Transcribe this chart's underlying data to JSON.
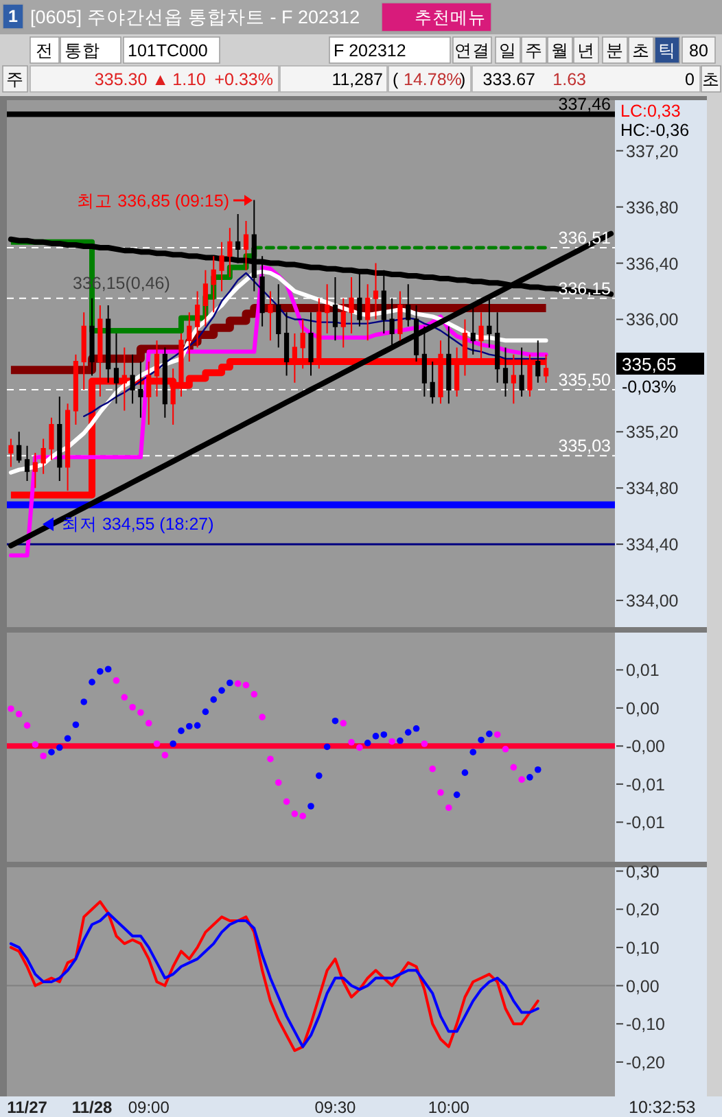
{
  "chart_data": [
    {
      "type": "other",
      "title": "[0605] 주야간선옵 통합차트 - F 202312",
      "annotations": [
        "1",
        "추천메뉴",
        "전",
        "통합",
        "101TC000",
        "F 202312",
        "연결",
        "일",
        "주",
        "월",
        "년",
        "분",
        "초",
        "틱",
        "80",
        "주",
        "335.30 ▲",
        "1.10",
        "+0.33%",
        "11,287",
        "(",
        "14.78%",
        ")",
        "333.67",
        "1.63",
        "0",
        "초"
      ]
    },
    {
      "type": "candlestick",
      "categories": [
        null,
        null,
        null,
        null,
        null,
        null,
        null,
        null,
        null,
        null,
        null,
        null,
        null,
        null,
        null,
        null,
        null,
        null,
        null,
        null,
        null,
        null,
        null,
        null,
        null,
        null,
        null,
        null,
        null,
        null,
        null,
        null,
        null,
        null,
        null,
        null,
        null,
        null,
        null,
        null,
        null,
        null,
        null,
        null,
        null,
        null,
        null,
        null,
        null,
        null,
        null,
        null,
        null,
        null,
        null,
        null,
        null,
        null,
        null,
        null,
        null,
        null,
        null,
        null,
        null,
        null,
        null,
        null,
        null,
        null,
        null,
        null,
        null,
        null,
        null
      ],
      "ohlc": [
        [
          335.05,
          335.15,
          334.95,
          335.1
        ],
        [
          335.1,
          335.2,
          334.98,
          335.0
        ],
        [
          335.0,
          335.1,
          334.85,
          334.92
        ],
        [
          334.92,
          335.05,
          334.8,
          334.98
        ],
        [
          334.98,
          335.15,
          334.9,
          335.08
        ],
        [
          335.08,
          335.3,
          335.0,
          335.25
        ],
        [
          335.25,
          335.45,
          334.85,
          334.95
        ],
        [
          334.95,
          335.4,
          334.78,
          335.35
        ],
        [
          335.35,
          335.75,
          335.25,
          335.7
        ],
        [
          335.7,
          336.05,
          335.5,
          335.95
        ],
        [
          335.95,
          336.15,
          335.6,
          335.7
        ],
        [
          335.7,
          336.1,
          335.45,
          336.0
        ],
        [
          336.0,
          336.1,
          335.55,
          335.65
        ],
        [
          335.65,
          335.9,
          335.4,
          335.55
        ],
        [
          335.55,
          335.8,
          335.35,
          335.6
        ],
        [
          335.6,
          335.75,
          335.4,
          335.5
        ],
        [
          335.5,
          335.7,
          335.3,
          335.45
        ],
        [
          335.45,
          335.7,
          335.25,
          335.6
        ],
        [
          335.6,
          335.85,
          335.45,
          335.75
        ],
        [
          335.75,
          335.8,
          335.3,
          335.4
        ],
        [
          335.4,
          335.65,
          335.25,
          335.55
        ],
        [
          335.55,
          335.9,
          335.45,
          335.85
        ],
        [
          335.85,
          336.05,
          335.7,
          335.95
        ],
        [
          335.95,
          336.2,
          335.8,
          336.1
        ],
        [
          336.1,
          336.35,
          335.95,
          336.25
        ],
        [
          336.25,
          336.45,
          336.05,
          336.35
        ],
        [
          336.35,
          336.55,
          336.2,
          336.45
        ],
        [
          336.45,
          336.65,
          336.3,
          336.55
        ],
        [
          336.55,
          336.75,
          336.4,
          336.5
        ],
        [
          336.5,
          336.7,
          336.35,
          336.6
        ],
        [
          336.6,
          336.85,
          336.2,
          336.3
        ],
        [
          336.3,
          336.45,
          335.95,
          336.05
        ],
        [
          336.05,
          336.2,
          335.85,
          336.1
        ],
        [
          336.1,
          336.25,
          335.8,
          335.9
        ],
        [
          335.9,
          336.05,
          335.6,
          335.7
        ],
        [
          335.7,
          335.9,
          335.55,
          335.8
        ],
        [
          335.8,
          336.0,
          335.65,
          335.9
        ],
        [
          335.9,
          336.05,
          335.6,
          335.7
        ],
        [
          335.7,
          336.15,
          335.65,
          336.05
        ],
        [
          336.05,
          336.25,
          335.9,
          336.1
        ],
        [
          336.1,
          336.3,
          335.85,
          335.95
        ],
        [
          335.95,
          336.15,
          335.8,
          336.05
        ],
        [
          336.05,
          336.3,
          335.9,
          336.15
        ],
        [
          336.15,
          336.35,
          335.95,
          336.0
        ],
        [
          336.0,
          336.25,
          335.85,
          336.15
        ],
        [
          336.15,
          336.4,
          336.0,
          336.2
        ],
        [
          336.2,
          336.35,
          335.9,
          336.0
        ],
        [
          336.0,
          336.15,
          335.8,
          335.9
        ],
        [
          335.9,
          336.2,
          335.85,
          336.1
        ],
        [
          336.1,
          336.25,
          335.95,
          336.0
        ],
        [
          336.0,
          336.1,
          335.7,
          335.75
        ],
        [
          335.75,
          335.95,
          335.45,
          335.55
        ],
        [
          335.55,
          335.7,
          335.4,
          335.45
        ],
        [
          335.45,
          335.85,
          335.4,
          335.75
        ],
        [
          335.75,
          335.95,
          335.4,
          335.5
        ],
        [
          335.5,
          335.8,
          335.45,
          335.7
        ],
        [
          335.7,
          336.0,
          335.6,
          335.9
        ],
        [
          335.9,
          336.1,
          335.75,
          335.85
        ],
        [
          335.85,
          336.05,
          335.7,
          335.95
        ],
        [
          335.95,
          336.15,
          335.8,
          335.9
        ],
        [
          335.9,
          336.05,
          335.55,
          335.65
        ],
        [
          335.65,
          335.8,
          335.45,
          335.55
        ],
        [
          335.55,
          335.75,
          335.4,
          335.6
        ],
        [
          335.6,
          335.8,
          335.45,
          335.5
        ],
        [
          335.5,
          335.75,
          335.45,
          335.7
        ],
        [
          335.7,
          335.85,
          335.55,
          335.6
        ],
        [
          335.6,
          335.75,
          335.55,
          335.65
        ],
        null,
        null,
        null,
        null,
        null,
        null,
        null,
        null
      ],
      "series": [
        {
          "type": "step",
          "color": "#800000",
          "values": [
            335.64,
            335.64,
            335.64,
            335.64,
            335.64,
            335.64,
            335.64,
            335.64,
            335.64,
            335.64,
            335.72,
            335.72,
            335.72,
            335.72,
            335.72,
            335.72,
            335.79,
            335.79,
            335.79,
            335.79,
            335.79,
            335.79,
            335.84,
            335.89,
            335.89,
            335.94,
            335.94,
            335.99,
            335.99,
            336.04,
            336.08,
            336.08,
            336.08,
            336.08,
            336.08,
            336.08,
            336.08,
            336.08,
            336.08,
            336.08,
            336.08,
            336.08,
            336.08,
            336.08,
            336.08,
            336.08,
            336.08,
            336.08,
            336.08,
            336.08,
            336.08,
            336.08,
            336.08,
            336.08,
            336.08,
            336.08,
            336.08,
            336.08,
            336.08,
            336.08,
            336.08,
            336.08,
            336.08,
            336.08,
            336.08,
            336.08,
            336.08,
            null,
            null,
            null,
            null,
            null,
            null,
            null,
            null
          ]
        },
        {
          "type": "step",
          "color": "#ff0000",
          "values": [
            334.75,
            334.75,
            334.75,
            334.75,
            334.75,
            334.75,
            334.75,
            334.75,
            334.75,
            334.75,
            335.56,
            335.56,
            335.56,
            335.56,
            335.56,
            335.56,
            335.56,
            335.56,
            335.56,
            335.56,
            335.53,
            335.53,
            335.58,
            335.58,
            335.62,
            335.62,
            335.66,
            335.7,
            335.7,
            335.7,
            335.7,
            335.7,
            335.7,
            335.7,
            335.7,
            335.7,
            335.7,
            335.7,
            335.7,
            335.7,
            335.7,
            335.7,
            335.7,
            335.7,
            335.7,
            335.7,
            335.7,
            335.7,
            335.7,
            335.7,
            335.7,
            335.7,
            335.7,
            335.7,
            335.7,
            335.7,
            335.7,
            335.7,
            335.7,
            335.7,
            335.7,
            335.7,
            335.7,
            335.7,
            335.7,
            335.7,
            335.7,
            null,
            null,
            null,
            null,
            null,
            null,
            null,
            null
          ]
        },
        {
          "type": "step",
          "color": "#008000",
          "values": [
            336.55,
            336.55,
            336.55,
            336.55,
            336.55,
            336.55,
            336.55,
            336.55,
            336.55,
            336.55,
            335.92,
            335.92,
            335.92,
            335.92,
            335.92,
            335.92,
            335.92,
            335.92,
            335.92,
            335.92,
            335.92,
            336.01,
            336.01,
            336.01,
            336.16,
            336.3,
            336.3,
            336.37,
            336.37,
            336.45,
            336.51,
            null,
            null,
            null,
            null,
            null,
            null,
            null,
            null,
            null,
            null,
            null,
            null,
            null,
            null,
            null,
            null,
            null,
            null,
            null,
            null,
            null,
            null,
            null,
            null,
            null,
            null,
            null,
            null,
            null,
            null,
            null,
            null,
            null,
            null,
            null,
            null,
            null,
            null,
            null,
            null,
            null,
            null,
            null,
            null
          ]
        },
        {
          "type": "line",
          "color": "#008000",
          "line_style": "dashed",
          "values": [
            null,
            null,
            null,
            null,
            null,
            null,
            null,
            null,
            null,
            null,
            null,
            null,
            null,
            null,
            null,
            null,
            null,
            null,
            null,
            null,
            null,
            null,
            null,
            null,
            null,
            null,
            null,
            null,
            null,
            null,
            336.51,
            336.51,
            336.51,
            336.51,
            336.51,
            336.51,
            336.51,
            336.51,
            336.51,
            336.51,
            336.51,
            336.51,
            336.51,
            336.51,
            336.51,
            336.51,
            336.51,
            336.51,
            336.51,
            336.51,
            336.51,
            336.51,
            336.51,
            336.51,
            336.51,
            336.51,
            336.51,
            336.51,
            336.51,
            336.51,
            336.51,
            336.51,
            336.51,
            336.51,
            336.51,
            336.51,
            336.51,
            null,
            null,
            null,
            null,
            null,
            null,
            null,
            null
          ]
        },
        {
          "type": "line",
          "color": "#ff00ff",
          "values": [
            334.32,
            334.32,
            334.32,
            335.02,
            335.02,
            335.02,
            335.02,
            335.02,
            335.02,
            335.02,
            335.02,
            335.02,
            335.02,
            335.02,
            335.02,
            335.02,
            335.02,
            335.77,
            335.77,
            335.77,
            335.77,
            335.77,
            335.77,
            335.77,
            335.77,
            335.77,
            335.77,
            335.77,
            335.77,
            335.77,
            335.77,
            336.37,
            336.36,
            336.31,
            336.25,
            336.1,
            335.94,
            335.9,
            335.87,
            335.87,
            335.87,
            335.87,
            335.87,
            335.87,
            335.87,
            335.89,
            335.9,
            335.91,
            335.92,
            335.93,
            335.94,
            335.95,
            335.98,
            336.02,
            335.93,
            335.88,
            335.86,
            335.84,
            335.82,
            335.81,
            335.8,
            335.78,
            335.77,
            335.76,
            335.75,
            335.75,
            335.75,
            null,
            null,
            null,
            null,
            null,
            null,
            null,
            null
          ]
        },
        {
          "type": "line",
          "color": "#ffffff",
          "values": [
            334.91,
            334.93,
            334.94,
            334.95,
            334.97,
            335.02,
            335.06,
            335.09,
            335.14,
            335.19,
            335.26,
            335.34,
            335.41,
            335.48,
            335.53,
            335.56,
            335.6,
            335.63,
            335.66,
            335.68,
            335.7,
            335.72,
            335.85,
            335.94,
            335.99,
            336.05,
            336.1,
            336.17,
            336.23,
            336.28,
            336.33,
            336.34,
            336.33,
            336.3,
            336.25,
            336.2,
            336.18,
            336.16,
            336.14,
            336.12,
            336.1,
            336.08,
            336.06,
            336.04,
            336.03,
            336.04,
            336.05,
            336.06,
            336.07,
            336.06,
            336.04,
            336.03,
            336.02,
            336.0,
            335.97,
            335.94,
            335.91,
            335.88,
            335.87,
            335.87,
            335.86,
            335.85,
            335.85,
            335.85,
            335.85,
            335.85,
            335.85,
            null,
            null,
            null,
            null,
            null,
            null,
            null,
            null
          ]
        },
        {
          "type": "line",
          "color": "#000080",
          "values": [
            null,
            null,
            null,
            null,
            null,
            null,
            null,
            null,
            null,
            335.31,
            335.34,
            335.38,
            335.41,
            335.45,
            335.48,
            335.52,
            335.56,
            335.6,
            335.64,
            335.69,
            335.73,
            335.77,
            335.81,
            335.86,
            335.94,
            336.02,
            336.13,
            336.2,
            336.28,
            336.33,
            336.27,
            336.21,
            336.15,
            336.09,
            336.02,
            336.0,
            336.0,
            335.99,
            335.98,
            335.98,
            335.98,
            335.97,
            335.97,
            335.97,
            335.97,
            335.98,
            335.99,
            335.99,
            336.0,
            336.01,
            336.0,
            335.97,
            335.95,
            335.92,
            335.88,
            335.84,
            335.8,
            335.78,
            335.77,
            335.75,
            335.74,
            335.72,
            335.72,
            335.72,
            335.72,
            335.72,
            335.72,
            null,
            null,
            null,
            null,
            null,
            null,
            null,
            null
          ]
        },
        {
          "type": "line",
          "color": "#000000",
          "values": [
            336.57,
            336.56,
            336.56,
            336.55,
            336.55,
            336.54,
            336.54,
            336.53,
            336.53,
            336.52,
            336.52,
            336.51,
            336.51,
            336.5,
            336.49,
            336.49,
            336.48,
            336.48,
            336.47,
            336.47,
            336.46,
            336.46,
            336.45,
            336.45,
            336.44,
            336.44,
            336.43,
            336.43,
            336.42,
            336.42,
            336.41,
            336.41,
            336.4,
            336.4,
            336.39,
            336.39,
            336.38,
            336.37,
            336.37,
            336.36,
            336.36,
            336.35,
            336.35,
            336.34,
            336.34,
            336.33,
            336.33,
            336.32,
            336.32,
            336.31,
            336.31,
            336.3,
            336.3,
            336.29,
            336.29,
            336.28,
            336.28,
            336.27,
            336.27,
            336.26,
            336.26,
            336.25,
            336.24,
            336.24,
            336.23,
            336.23,
            336.22,
            336.22,
            336.21,
            336.21,
            336.2,
            336.2,
            336.19,
            336.19,
            336.18
          ]
        },
        {
          "type": "line",
          "color": "#000000",
          "values": [
            334.39,
            334.42,
            334.45,
            334.48,
            334.51,
            334.54,
            334.57,
            334.6,
            334.63,
            334.66,
            334.69,
            334.72,
            334.75,
            334.78,
            334.81,
            334.84,
            334.87,
            334.9,
            334.93,
            334.96,
            334.99,
            335.02,
            335.05,
            335.08,
            335.11,
            335.14,
            335.17,
            335.2,
            335.23,
            335.26,
            335.29,
            335.32,
            335.35,
            335.38,
            335.41,
            335.44,
            335.47,
            335.5,
            335.53,
            335.56,
            335.59,
            335.62,
            335.65,
            335.68,
            335.71,
            335.74,
            335.77,
            335.8,
            335.83,
            335.86,
            335.89,
            335.92,
            335.95,
            335.98,
            336.01,
            336.04,
            336.07,
            336.1,
            336.13,
            336.16,
            336.19,
            336.22,
            336.25,
            336.28,
            336.31,
            336.34,
            336.37,
            336.4,
            336.43,
            336.46,
            336.49,
            336.52,
            336.55,
            336.58,
            336.61
          ]
        }
      ],
      "ylim": [
        333.81,
        337.56
      ],
      "yticks": [
        {
          "value": 337.2,
          "label": "337,20"
        },
        {
          "value": 336.8,
          "label": "336,80"
        },
        {
          "value": 336.4,
          "label": "336,40"
        },
        {
          "value": 336.0,
          "label": "336,00"
        },
        {
          "value": 335.2,
          "label": "335,20"
        },
        {
          "value": 334.8,
          "label": "334,80"
        },
        {
          "value": 334.4,
          "label": "334,40"
        },
        {
          "value": 334.0,
          "label": "334,00"
        }
      ],
      "ref_lines": [
        {
          "axis": "y",
          "value": 337.46,
          "label": "337,46",
          "color": "#000000"
        },
        {
          "axis": "y",
          "value": 336.51,
          "label": "336,51",
          "color": "#ffffff",
          "line_style": "dashed"
        },
        {
          "axis": "y",
          "value": 336.15,
          "label": "336,15",
          "color": "#ffffff",
          "line_style": "dashed"
        },
        {
          "axis": "y",
          "value": 335.5,
          "label": "335,50",
          "color": "#ffffff",
          "line_style": "dashed"
        },
        {
          "axis": "y",
          "value": 335.03,
          "label": "335,03",
          "color": "#ffffff",
          "line_style": "dashed"
        },
        {
          "axis": "y",
          "value": 334.68,
          "color": "#0000ff"
        },
        {
          "axis": "y",
          "value": 334.4,
          "color": "#000080"
        }
      ],
      "annotations": [
        "최고 336,85 (09:15)",
        {
          "text": "336,15(0,46)",
          "y": 336.15
        },
        "최저 334,55 (18:27)",
        "335,65",
        "-0,03%",
        "LC:0,33",
        "HC:-0,36"
      ],
      "tick_labels": "y"
    },
    {
      "type": "scatter",
      "marker": "circle",
      "categories": [
        null,
        null,
        null,
        null,
        null,
        null,
        null,
        null,
        null,
        null,
        null,
        null,
        null,
        null,
        null,
        null,
        null,
        null,
        null,
        null,
        null,
        null,
        null,
        null,
        null,
        null,
        null,
        null,
        null,
        null,
        null,
        null,
        null,
        null,
        null,
        null,
        null,
        null,
        null,
        null,
        null,
        null,
        null,
        null,
        null,
        null,
        null,
        null,
        null,
        null,
        null,
        null,
        null,
        null,
        null,
        null,
        null,
        null,
        null,
        null,
        null,
        null,
        null,
        null,
        null,
        null,
        null,
        null,
        null,
        null,
        null,
        null,
        null,
        null,
        null
      ],
      "values": [
        0.0024,
        0.0017,
        0.0002,
        -0.0023,
        -0.0038,
        -0.0033,
        -0.0027,
        -0.0015,
        0.0003,
        0.0033,
        0.0059,
        0.0073,
        0.0076,
        0.0061,
        0.0039,
        0.0026,
        0.0019,
        0.0005,
        -0.0022,
        -0.0037,
        -0.0022,
        -0.0005,
        0.0001,
        0.0002,
        0.002,
        0.0036,
        0.0048,
        0.0058,
        0.0057,
        0.0055,
        0.0043,
        0.0013,
        -0.0042,
        -0.0073,
        -0.0098,
        -0.0114,
        -0.0117,
        -0.0104,
        -0.0064,
        -0.0026,
        0.0008,
        0.0005,
        -0.002,
        -0.0027,
        -0.0021,
        -0.0012,
        -0.001,
        -0.0019,
        -0.0018,
        -0.0007,
        -0.0002,
        -0.0022,
        -0.0055,
        -0.0086,
        -0.0106,
        -0.0089,
        -0.006,
        -0.0033,
        -0.0017,
        -0.0009,
        -0.001,
        -0.0029,
        -0.0053,
        -0.0069,
        -0.0066,
        -0.0056,
        null,
        null,
        null,
        null,
        null,
        null,
        null,
        null,
        null
      ],
      "colors": [
        "#ff00ff",
        "#ff00ff",
        "#ff00ff",
        "#ff00ff",
        "#ff00ff",
        "#0000ff",
        "#0000ff",
        "#0000ff",
        "#0000ff",
        "#0000ff",
        "#0000ff",
        "#0000ff",
        "#0000ff",
        "#ff00ff",
        "#ff00ff",
        "#ff00ff",
        "#ff00ff",
        "#ff00ff",
        "#ff00ff",
        "#ff00ff",
        "#0000ff",
        "#0000ff",
        "#0000ff",
        "#0000ff",
        "#0000ff",
        "#0000ff",
        "#0000ff",
        "#0000ff",
        "#ff00ff",
        "#ff00ff",
        "#ff00ff",
        "#ff00ff",
        "#ff00ff",
        "#ff00ff",
        "#ff00ff",
        "#ff00ff",
        "#ff00ff",
        "#0000ff",
        "#0000ff",
        "#0000ff",
        "#0000ff",
        "#ff00ff",
        "#ff00ff",
        "#ff00ff",
        "#0000ff",
        "#0000ff",
        "#0000ff",
        "#ff00ff",
        "#0000ff",
        "#0000ff",
        "#0000ff",
        "#ff00ff",
        "#ff00ff",
        "#ff00ff",
        "#ff00ff",
        "#0000ff",
        "#0000ff",
        "#0000ff",
        "#0000ff",
        "#0000ff",
        "#ff00ff",
        "#ff00ff",
        "#ff00ff",
        "#ff00ff",
        "#0000ff",
        "#0000ff",
        null,
        null,
        null,
        null,
        null,
        null,
        null,
        null,
        null
      ],
      "ylim": [
        -0.0177,
        0.0124
      ],
      "yticks": [
        {
          "value": 0.0075,
          "label": "0,01"
        },
        {
          "value": 0.0025,
          "label": "0,00"
        },
        {
          "value": -0.0025,
          "label": "-0,00"
        },
        {
          "value": -0.0075,
          "label": "-0,01"
        },
        {
          "value": -0.0125,
          "label": "-0,01"
        }
      ],
      "ref_lines": [
        {
          "axis": "y",
          "value": -0.0025,
          "color": "#ff0033"
        }
      ],
      "tick_labels": "y"
    },
    {
      "type": "line",
      "categories": [
        null,
        null,
        "11/27",
        null,
        null,
        null,
        null,
        null,
        null,
        null,
        "11/28",
        null,
        null,
        null,
        null,
        null,
        null,
        "09:00",
        null,
        null,
        null,
        null,
        null,
        null,
        null,
        null,
        null,
        null,
        null,
        null,
        null,
        null,
        null,
        null,
        null,
        null,
        null,
        null,
        null,
        null,
        "09:30",
        null,
        null,
        null,
        null,
        null,
        null,
        null,
        null,
        null,
        null,
        null,
        null,
        null,
        "10:00",
        null,
        null,
        null,
        null,
        null,
        null,
        null,
        null,
        null,
        null,
        null,
        null,
        null,
        null,
        null,
        null,
        null,
        null,
        null,
        null
      ],
      "series": [
        {
          "color": "#ff0000",
          "values": [
            0.1,
            0.09,
            0.05,
            0.0,
            0.01,
            0.02,
            0.01,
            0.06,
            0.07,
            0.18,
            0.2,
            0.22,
            0.19,
            0.13,
            0.11,
            0.12,
            0.11,
            0.07,
            0.01,
            0.0,
            0.05,
            0.09,
            0.07,
            0.1,
            0.14,
            0.16,
            0.18,
            0.17,
            0.17,
            0.18,
            0.14,
            0.04,
            -0.04,
            -0.09,
            -0.13,
            -0.17,
            -0.16,
            -0.1,
            -0.03,
            0.04,
            0.07,
            0.01,
            -0.03,
            -0.01,
            0.02,
            0.04,
            0.02,
            0.0,
            0.03,
            0.06,
            0.05,
            -0.01,
            -0.1,
            -0.14,
            -0.16,
            -0.1,
            -0.03,
            0.01,
            0.02,
            0.03,
            0.01,
            -0.06,
            -0.1,
            -0.1,
            -0.07,
            -0.04,
            null,
            null,
            null,
            null,
            null,
            null,
            null,
            null,
            null
          ]
        },
        {
          "color": "#0000ff",
          "values": [
            0.11,
            0.1,
            0.07,
            0.03,
            0.01,
            0.01,
            0.02,
            0.04,
            0.07,
            0.12,
            0.16,
            0.17,
            0.19,
            0.17,
            0.15,
            0.13,
            0.13,
            0.1,
            0.06,
            0.02,
            0.03,
            0.05,
            0.06,
            0.07,
            0.09,
            0.11,
            0.14,
            0.16,
            0.17,
            0.17,
            0.15,
            0.08,
            0.02,
            -0.03,
            -0.08,
            -0.12,
            -0.16,
            -0.13,
            -0.08,
            -0.02,
            0.02,
            0.02,
            0.0,
            -0.01,
            0.0,
            0.02,
            0.02,
            0.02,
            0.03,
            0.04,
            0.04,
            0.01,
            -0.02,
            -0.08,
            -0.12,
            -0.12,
            -0.08,
            -0.04,
            -0.01,
            0.01,
            0.02,
            0.0,
            -0.04,
            -0.07,
            -0.07,
            -0.06,
            null,
            null,
            null,
            null,
            null,
            null,
            null,
            null,
            null
          ]
        }
      ],
      "ylim": [
        -0.29,
        0.31
      ],
      "yticks": [
        {
          "value": 0.3,
          "label": "0,30"
        },
        {
          "value": 0.2,
          "label": "0,20"
        },
        {
          "value": 0.1,
          "label": "0,10"
        },
        {
          "value": 0,
          "label": "0,00"
        },
        {
          "value": -0.1,
          "label": "-0,10"
        },
        {
          "value": -0.2,
          "label": "-0,20"
        }
      ],
      "ref_lines": [
        {
          "axis": "y",
          "value": 0,
          "color": "#808080"
        }
      ],
      "annotations": [
        "10:32:53"
      ]
    }
  ]
}
